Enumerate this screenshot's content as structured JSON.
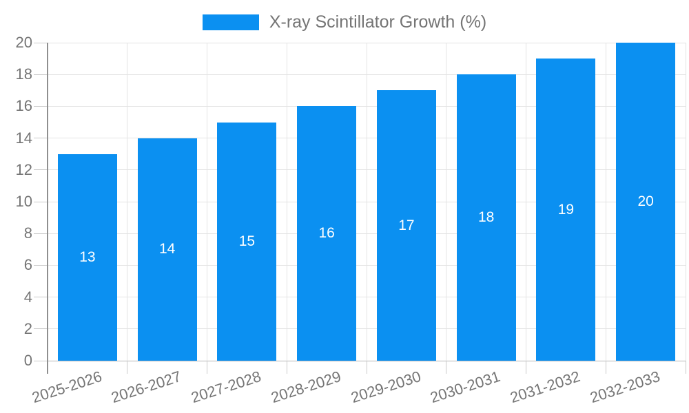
{
  "chart_data": {
    "type": "bar",
    "title": "X-ray Scintillator Growth (%)",
    "categories": [
      "2025-2026",
      "2026-2027",
      "2027-2028",
      "2028-2029",
      "2029-2030",
      "2030-2031",
      "2031-2032",
      "2032-2033"
    ],
    "values": [
      13,
      14,
      15,
      16,
      17,
      18,
      19,
      20
    ],
    "value_labels": [
      "13",
      "14",
      "15",
      "16",
      "17",
      "18",
      "19",
      "20"
    ],
    "xlabel": "",
    "ylabel": "",
    "ylim": [
      0,
      20
    ],
    "ytick_step": 2,
    "ytick_labels": [
      "0",
      "2",
      "4",
      "6",
      "8",
      "10",
      "12",
      "14",
      "16",
      "18",
      "20"
    ],
    "legend_position": "top",
    "grid": true,
    "colors": {
      "bar": "#0b90f1",
      "value_label": "#ffffff",
      "axis_text": "#757575",
      "gridline": "#e3e3e3",
      "baseline": "#b3b3b3",
      "tick": "#c9c9c9",
      "y_axis_line": "#8f8f8f",
      "background": "#ffffff"
    }
  }
}
